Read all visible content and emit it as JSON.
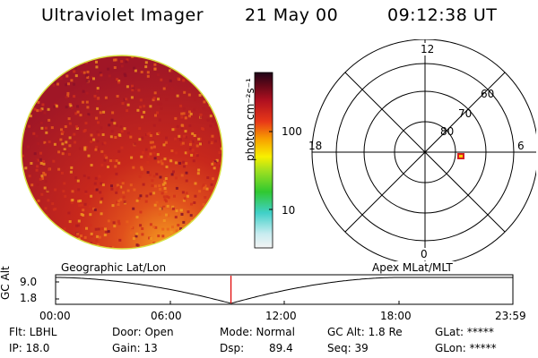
{
  "header": {
    "instrument": "Ultraviolet Imager",
    "date": "21 May 00",
    "time": "09:12:38 UT"
  },
  "colorbar": {
    "unit_label": "photon cm⁻²s⁻¹",
    "ticks": [
      "100",
      "10"
    ]
  },
  "polar_plot": {
    "mlt_labels": [
      "12",
      "18",
      "6",
      "0"
    ],
    "lat_labels": [
      "60",
      "70",
      "80"
    ]
  },
  "timeline": {
    "left_title": "Geographic Lat/Lon",
    "right_title": "Apex MLat/MLT",
    "y_label": "GC Alt",
    "y_ticks": [
      "9.0",
      "1.8"
    ],
    "x_ticks": [
      "00:00",
      "06:00",
      "12:00",
      "18:00",
      "23:59"
    ],
    "current_time_fraction": 0.3836
  },
  "info": {
    "flt": "Flt: LBHL",
    "ip": "IP: 18.0",
    "door": "Door: Open",
    "gain": "Gain: 13",
    "mode": "Mode: Normal",
    "dsp": "Dsp:",
    "dsp_value": "89.4",
    "gcalt": "GC Alt: 1.8 Re",
    "seq": "Seq: 39",
    "glat": "GLat: *****",
    "glon": "GLon: *****"
  },
  "colors": {
    "current_time_marker": "#e00000",
    "polar_marker": "#ffcc00"
  }
}
